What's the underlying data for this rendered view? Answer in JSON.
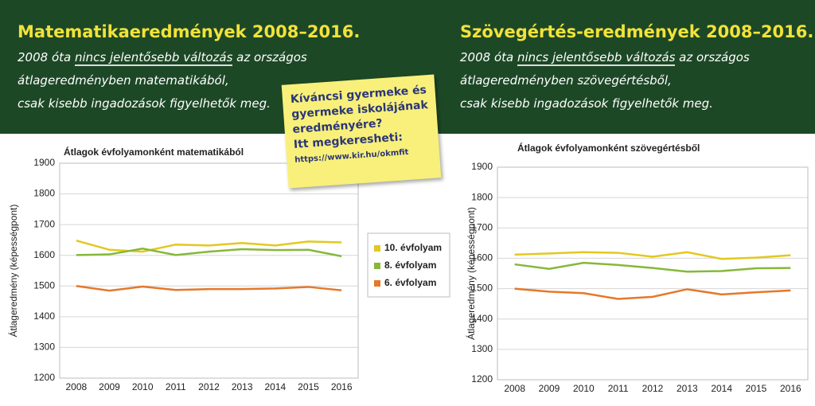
{
  "header": {
    "panels": [
      {
        "title": "Matematikaeredmények 2008–2016.",
        "intro": "2008 óta",
        "highlight": "nincs jelentősebb változás",
        "rest": "az országos",
        "lines": [
          "átlageredményben matematikából,",
          "csak kisebb ingadozások figyelhetők meg."
        ]
      },
      {
        "title": "Szövegértés-eredmények 2008–2016.",
        "intro": "2008 óta",
        "highlight": "nincs jelentősebb változás",
        "rest": "az országos",
        "lines": [
          "átlageredményben szövegértésből,",
          "csak kisebb ingadozások figyelhetők meg."
        ]
      }
    ]
  },
  "note": {
    "lines": [
      "Kíváncsi gyermeke és",
      "gyermeke iskolájának",
      "eredményére?",
      "Itt megkeresheti:"
    ],
    "url": "https://www.kir.hu/okmfit"
  },
  "chart_data": [
    {
      "type": "line",
      "title": "Átlagok évfolyamonként matematikából",
      "y_label": "Átlageredmény (képességpont)",
      "categories": [
        "2008",
        "2009",
        "2010",
        "2011",
        "2012",
        "2013",
        "2014",
        "2015",
        "2016"
      ],
      "series": [
        {
          "name": "10. évfolyam",
          "color": "#e3c81f",
          "values": [
            1648,
            1618,
            1612,
            1635,
            1632,
            1640,
            1632,
            1645,
            1642
          ]
        },
        {
          "name": "8. évfolyam",
          "color": "#86b83a",
          "values": [
            1601,
            1603,
            1622,
            1601,
            1612,
            1620,
            1617,
            1618,
            1597
          ]
        },
        {
          "name": "6. évfolyam",
          "color": "#e5782a",
          "values": [
            1500,
            1485,
            1498,
            1487,
            1490,
            1490,
            1492,
            1497,
            1486
          ]
        }
      ],
      "ylim": [
        1200,
        1900
      ],
      "yticks": [
        1200,
        1300,
        1400,
        1500,
        1600,
        1700,
        1800,
        1900
      ],
      "grid": true,
      "legend": "right"
    },
    {
      "type": "line",
      "title": "Átlagok évfolyamonként szövegértésből",
      "y_label": "Átlageredmény (képességpont)",
      "categories": [
        "2008",
        "2009",
        "2010",
        "2011",
        "2012",
        "2013",
        "2014",
        "2015",
        "2016"
      ],
      "series": [
        {
          "color": "#e3c81f",
          "values": [
            1612,
            1616,
            1620,
            1618,
            1605,
            1620,
            1598,
            1602,
            1610
          ]
        },
        {
          "color": "#86b83a",
          "values": [
            1580,
            1565,
            1585,
            1578,
            1568,
            1556,
            1558,
            1567,
            1568
          ]
        },
        {
          "color": "#e5782a",
          "values": [
            1500,
            1490,
            1485,
            1466,
            1473,
            1498,
            1481,
            1488,
            1494
          ]
        }
      ],
      "ylim": [
        1200,
        1900
      ],
      "yticks": [
        1200,
        1300,
        1400,
        1500,
        1600,
        1700,
        1800,
        1900
      ],
      "grid": true
    }
  ]
}
